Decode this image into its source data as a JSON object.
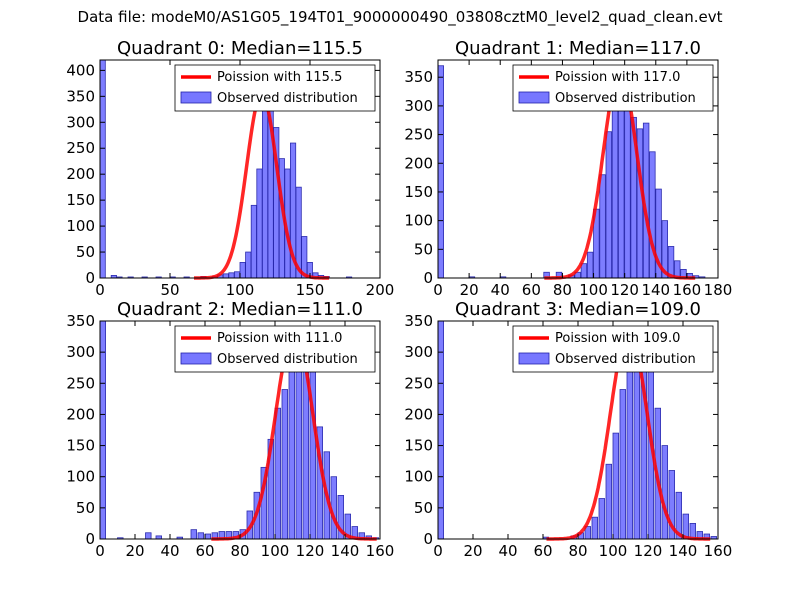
{
  "figure": {
    "suptitle": "Data file: modeM0/AS1G05_194T01_9000000490_03808cztM0_level2_quad_clean.evt"
  },
  "colors": {
    "bar_fill": "#7777ff",
    "bar_stroke": "#2222aa",
    "poisson_line": "#ff0000"
  },
  "chart_data": [
    {
      "type": "bar",
      "title": "Quadrant 0: Median=115.5",
      "xlim": [
        0,
        200
      ],
      "ylim": [
        0,
        420
      ],
      "xticks": [
        0,
        50,
        100,
        150,
        200
      ],
      "yticks": [
        0,
        50,
        100,
        150,
        200,
        250,
        300,
        350,
        400
      ],
      "bin_width": 3.8,
      "bins": [
        [
          0,
          420
        ],
        [
          8,
          5
        ],
        [
          12,
          2
        ],
        [
          20,
          2
        ],
        [
          30,
          2
        ],
        [
          40,
          2
        ],
        [
          50,
          2
        ],
        [
          60,
          2
        ],
        [
          72,
          3
        ],
        [
          80,
          3
        ],
        [
          84,
          6
        ],
        [
          88,
          8
        ],
        [
          92,
          10
        ],
        [
          96,
          12
        ],
        [
          100,
          30
        ],
        [
          104,
          50
        ],
        [
          108,
          140
        ],
        [
          112,
          210
        ],
        [
          116,
          335
        ],
        [
          120,
          345
        ],
        [
          124,
          290
        ],
        [
          128,
          230
        ],
        [
          132,
          210
        ],
        [
          136,
          260
        ],
        [
          140,
          175
        ],
        [
          144,
          80
        ],
        [
          148,
          30
        ],
        [
          152,
          10
        ],
        [
          156,
          5
        ],
        [
          160,
          3
        ],
        [
          176,
          2
        ]
      ],
      "legend": [
        "Poission with 115.5",
        "Observed distribution"
      ],
      "poisson": {
        "mean": 115.5,
        "peak": 355
      }
    },
    {
      "type": "bar",
      "title": "Quadrant 1: Median=117.0",
      "xlim": [
        0,
        180
      ],
      "ylim": [
        0,
        380
      ],
      "xticks": [
        0,
        20,
        40,
        60,
        80,
        100,
        120,
        140,
        160,
        180
      ],
      "yticks": [
        0,
        50,
        100,
        150,
        200,
        250,
        300,
        350
      ],
      "bin_width": 3.6,
      "bins": [
        [
          0,
          370
        ],
        [
          20,
          2
        ],
        [
          40,
          2
        ],
        [
          68,
          10
        ],
        [
          76,
          10
        ],
        [
          84,
          5
        ],
        [
          88,
          10
        ],
        [
          92,
          25
        ],
        [
          96,
          45
        ],
        [
          100,
          120
        ],
        [
          104,
          180
        ],
        [
          108,
          255
        ],
        [
          112,
          300
        ],
        [
          116,
          355
        ],
        [
          120,
          315
        ],
        [
          124,
          280
        ],
        [
          128,
          260
        ],
        [
          132,
          270
        ],
        [
          136,
          220
        ],
        [
          140,
          155
        ],
        [
          144,
          100
        ],
        [
          148,
          55
        ],
        [
          152,
          30
        ],
        [
          156,
          15
        ],
        [
          160,
          8
        ],
        [
          164,
          4
        ],
        [
          168,
          2
        ]
      ],
      "legend": [
        "Poission with 117.0",
        "Observed distribution"
      ],
      "poisson": {
        "mean": 117.0,
        "peak": 360
      }
    },
    {
      "type": "bar",
      "title": "Quadrant 2: Median=111.0",
      "xlim": [
        0,
        160
      ],
      "ylim": [
        0,
        350
      ],
      "xticks": [
        0,
        20,
        40,
        60,
        80,
        100,
        120,
        140,
        160
      ],
      "yticks": [
        0,
        50,
        100,
        150,
        200,
        250,
        300,
        350
      ],
      "bin_width": 3.2,
      "bins": [
        [
          0,
          350
        ],
        [
          10,
          2
        ],
        [
          26,
          10
        ],
        [
          32,
          5
        ],
        [
          44,
          3
        ],
        [
          52,
          15
        ],
        [
          56,
          10
        ],
        [
          60,
          8
        ],
        [
          64,
          10
        ],
        [
          68,
          12
        ],
        [
          72,
          12
        ],
        [
          76,
          12
        ],
        [
          80,
          15
        ],
        [
          84,
          45
        ],
        [
          88,
          75
        ],
        [
          92,
          115
        ],
        [
          96,
          160
        ],
        [
          100,
          210
        ],
        [
          104,
          240
        ],
        [
          108,
          330
        ],
        [
          112,
          280
        ],
        [
          116,
          290
        ],
        [
          120,
          310
        ],
        [
          124,
          180
        ],
        [
          128,
          140
        ],
        [
          132,
          100
        ],
        [
          136,
          70
        ],
        [
          140,
          40
        ],
        [
          144,
          20
        ],
        [
          148,
          10
        ],
        [
          152,
          5
        ],
        [
          156,
          2
        ]
      ],
      "legend": [
        "Poission with 111.0",
        "Observed distribution"
      ],
      "poisson": {
        "mean": 111.0,
        "peak": 335
      }
    },
    {
      "type": "bar",
      "title": "Quadrant 3: Median=109.0",
      "xlim": [
        0,
        160
      ],
      "ylim": [
        0,
        350
      ],
      "xticks": [
        0,
        20,
        40,
        60,
        80,
        100,
        120,
        140,
        160
      ],
      "yticks": [
        0,
        50,
        100,
        150,
        200,
        250,
        300,
        350
      ],
      "bin_width": 3.2,
      "bins": [
        [
          0,
          350
        ],
        [
          60,
          3
        ],
        [
          76,
          5
        ],
        [
          80,
          10
        ],
        [
          84,
          20
        ],
        [
          88,
          35
        ],
        [
          92,
          65
        ],
        [
          96,
          120
        ],
        [
          100,
          170
        ],
        [
          104,
          240
        ],
        [
          108,
          290
        ],
        [
          112,
          310
        ],
        [
          116,
          305
        ],
        [
          120,
          330
        ],
        [
          124,
          210
        ],
        [
          128,
          150
        ],
        [
          132,
          110
        ],
        [
          136,
          75
        ],
        [
          140,
          40
        ],
        [
          144,
          25
        ],
        [
          148,
          12
        ],
        [
          152,
          8
        ],
        [
          156,
          4
        ]
      ],
      "legend": [
        "Poission with 109.0",
        "Observed distribution"
      ],
      "poisson": {
        "mean": 109.0,
        "peak": 335
      }
    }
  ]
}
